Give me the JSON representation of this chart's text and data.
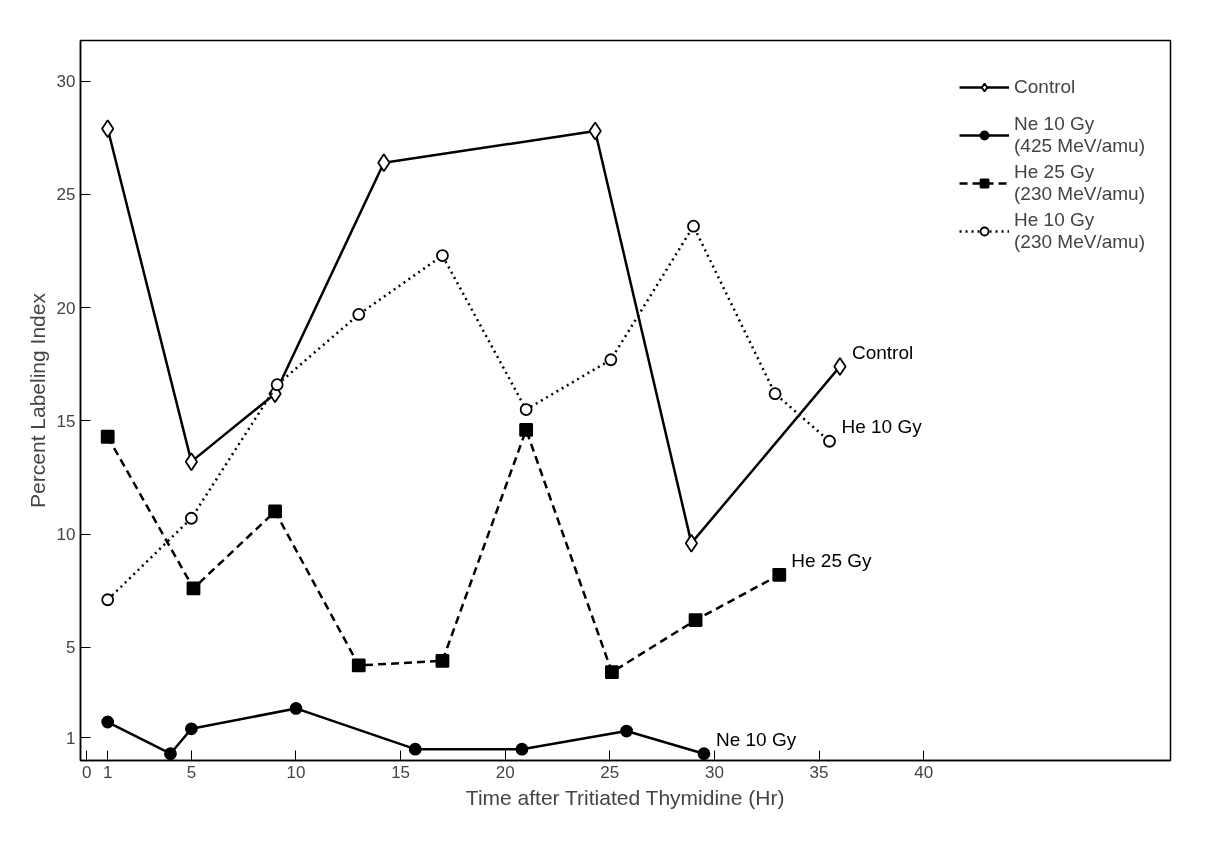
{
  "chart_data": {
    "type": "line",
    "xlabel": "Time after Tritiated Thymidine (Hr)",
    "ylabel": "Percent Labeling Index",
    "xlim": [
      -0.3,
      51.8
    ],
    "ylim": [
      0,
      31.8
    ],
    "xticks": [
      0,
      1,
      5,
      10,
      15,
      20,
      25,
      30,
      35,
      40
    ],
    "yticks": [
      1,
      5,
      10,
      15,
      20,
      25,
      30
    ],
    "grid": false,
    "legend": "top right",
    "series": [
      {
        "name": "Control",
        "color": "#000000",
        "marker": "diamond",
        "line_style": "solid",
        "x": [
          1,
          5,
          9,
          14.2,
          24.3,
          28.9,
          36.0
        ],
        "values": [
          27.9,
          13.2,
          16.2,
          26.4,
          27.8,
          9.6,
          17.4
        ]
      },
      {
        "name": "Ne 10 Gy\n(425 MeV/amu)",
        "color": "#000000",
        "marker": "circle",
        "line_style": "solid",
        "x": [
          1,
          4,
          5,
          10,
          15.7,
          20.8,
          25.8,
          29.5
        ],
        "values": [
          1.7,
          0.3,
          1.4,
          2.3,
          0.5,
          0.5,
          1.3,
          0.3
        ]
      },
      {
        "name": "He 25 Gy\n(230 MeV/amu)",
        "color": "#000000",
        "marker": "square",
        "line_style": "dashed",
        "x": [
          1,
          5.1,
          9,
          13,
          17,
          21,
          25.1,
          29.1,
          33.1
        ],
        "values": [
          14.3,
          7.6,
          11.0,
          4.2,
          4.4,
          14.6,
          3.9,
          6.2,
          8.2
        ]
      },
      {
        "name": "He 10 Gy\n(230 MeV/amu)",
        "color": "#000000",
        "marker": "circle",
        "line_style": "dotted",
        "x": [
          1,
          5,
          9.1,
          13,
          17,
          21,
          25.05,
          29,
          32.9,
          35.5
        ],
        "values": [
          7.1,
          10.7,
          16.6,
          19.7,
          22.3,
          15.5,
          17.7,
          23.6,
          16.2,
          14.1
        ]
      }
    ],
    "annotations": [
      "Control",
      "Ne 10 Gy",
      "He 25 Gy",
      "He 10 Gy"
    ]
  }
}
